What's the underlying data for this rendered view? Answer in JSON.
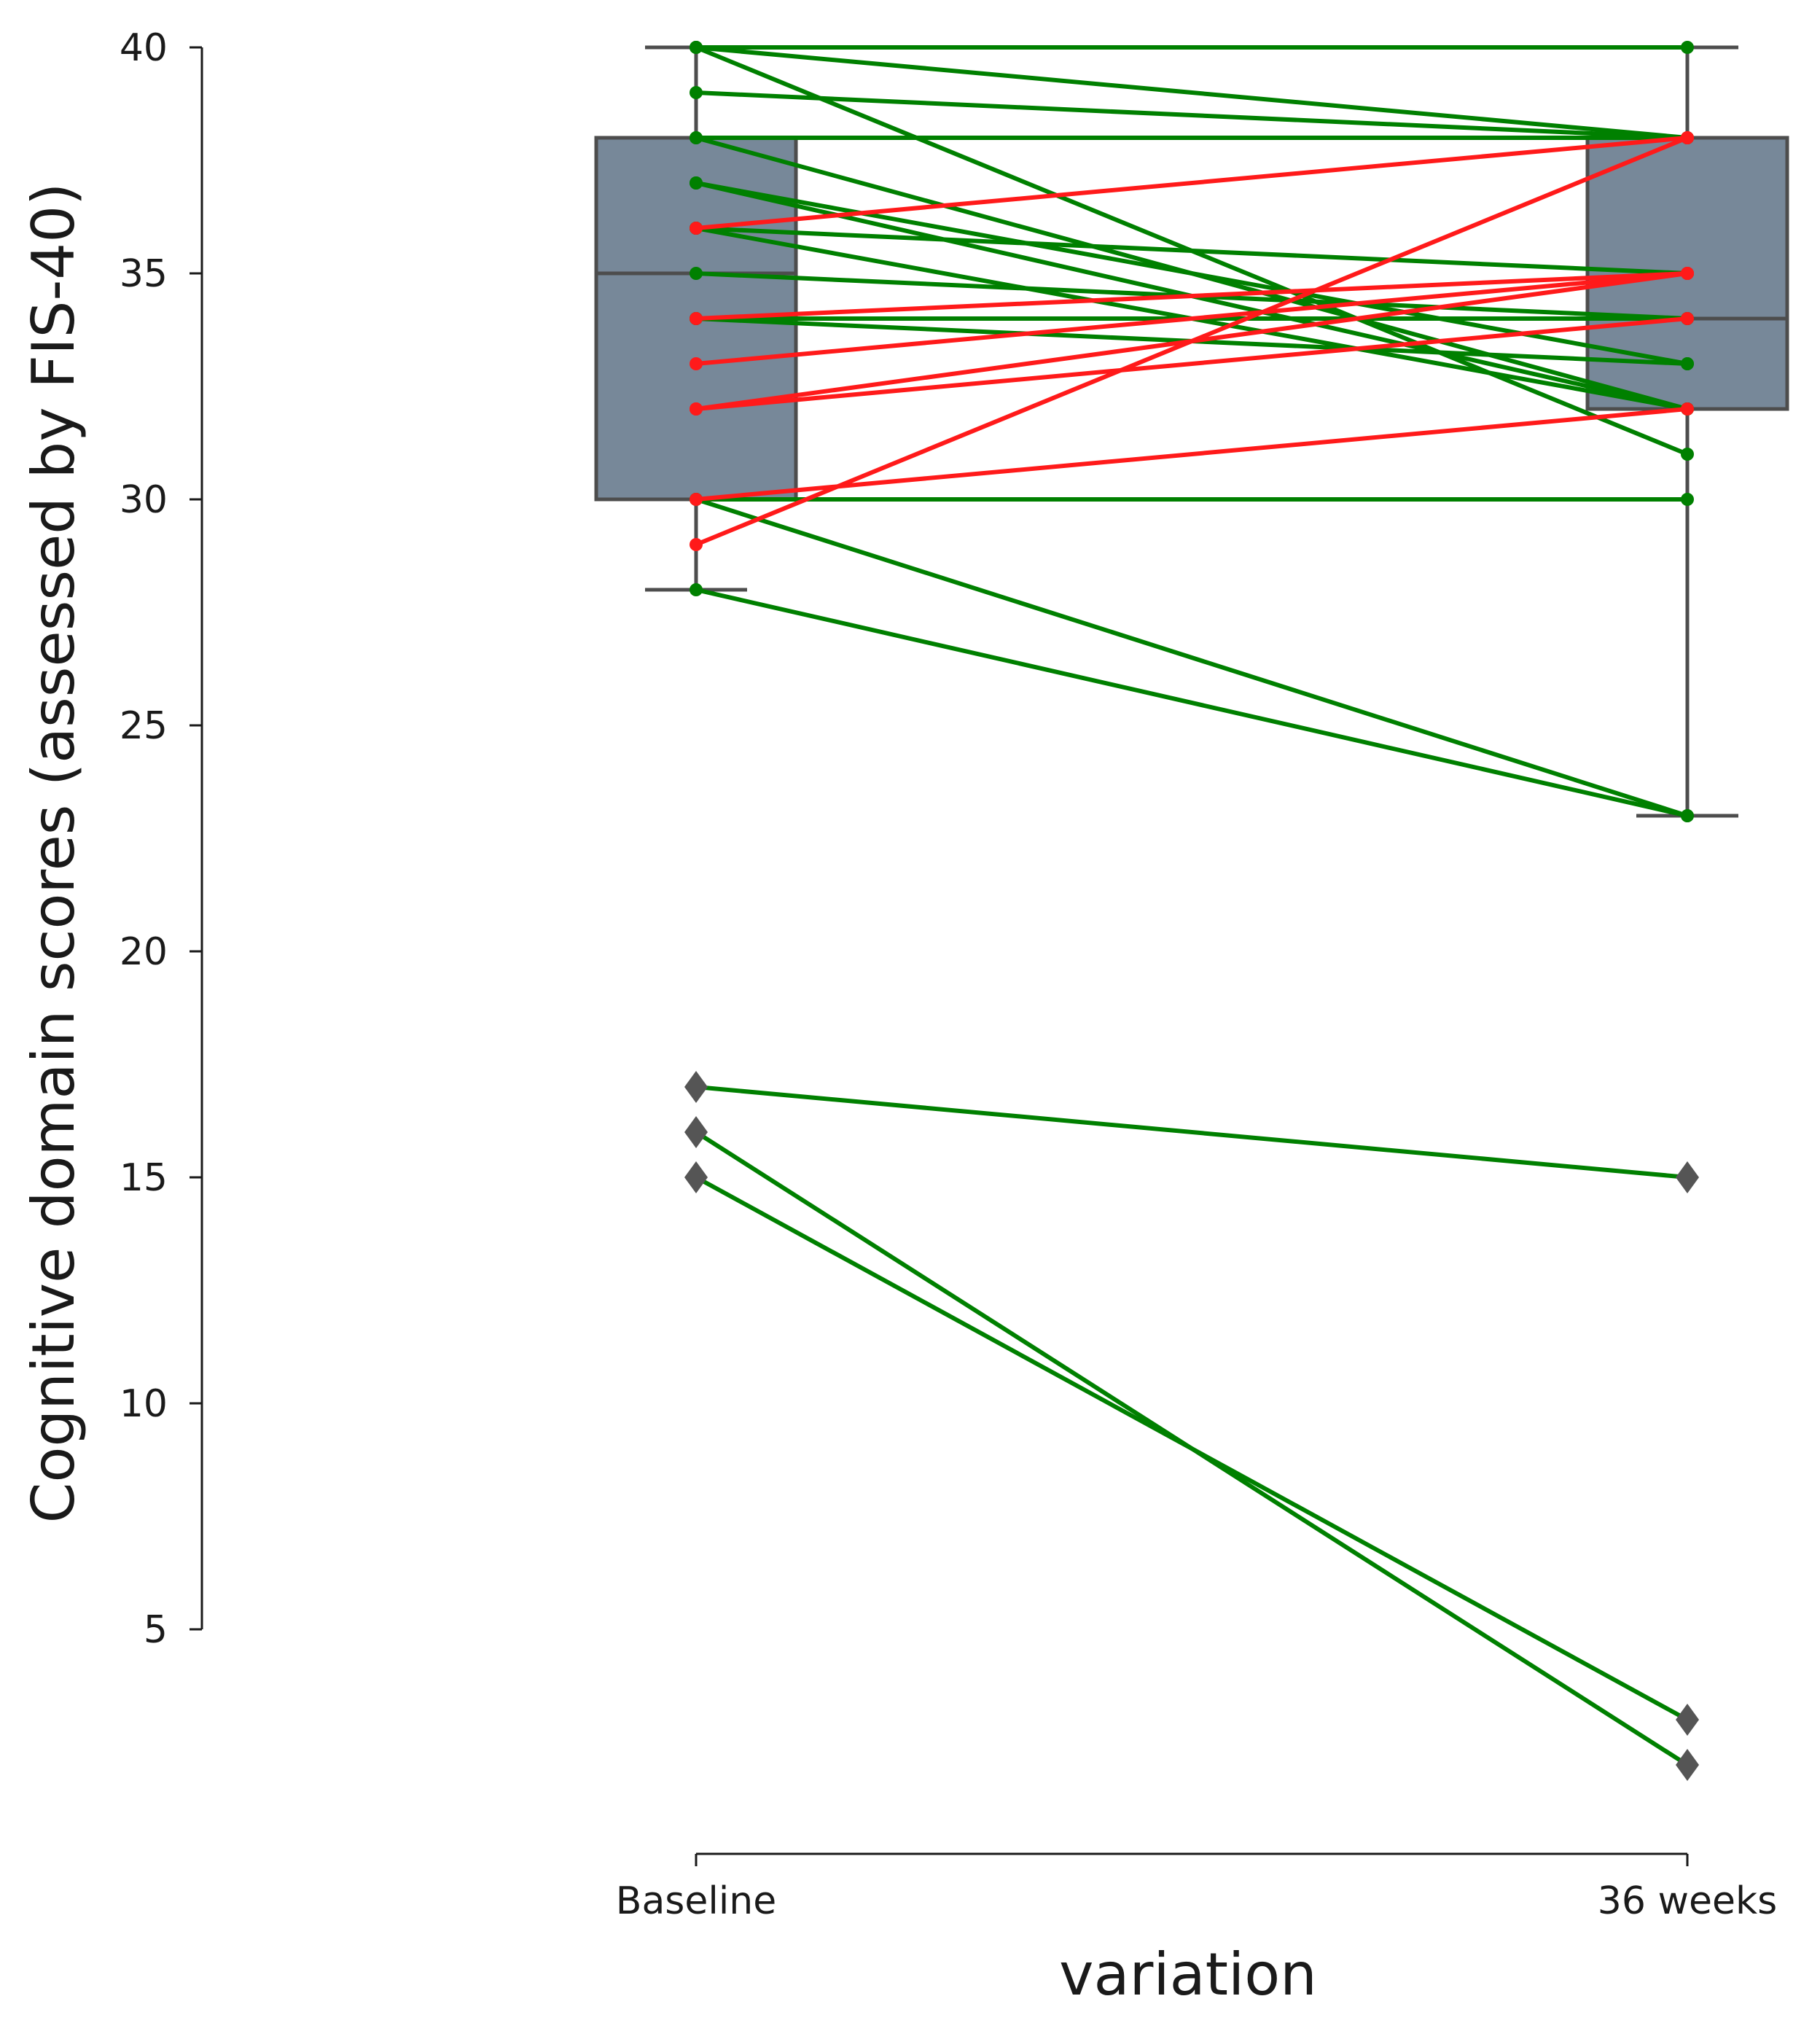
{
  "chart_data": {
    "type": "box-paired-slope",
    "xlabel": "variation",
    "ylabel": "Cognitive domain scores (assessed by FIS-40)",
    "categories": [
      "Baseline",
      "36 weeks"
    ],
    "y_ticks": [
      5,
      10,
      15,
      20,
      25,
      30,
      35,
      40
    ],
    "y_tick_labels": [
      "5",
      "10",
      "15",
      "20",
      "25",
      "30",
      "35",
      "40"
    ],
    "ylim": [
      0.5,
      41
    ],
    "boxes": [
      {
        "category": "Baseline",
        "q1": 30,
        "median": 35,
        "q3": 38,
        "whisker_low": 28,
        "whisker_high": 40,
        "outliers": [
          17,
          16,
          15
        ]
      },
      {
        "category": "36 weeks",
        "q1": 32,
        "median": 34,
        "q3": 38,
        "whisker_low": 23,
        "whisker_high": 40,
        "outliers": [
          15,
          3,
          2
        ]
      }
    ],
    "colors": {
      "box_fill": "#778899",
      "box_edge": "#4d4d4d",
      "improved": "#ff1a1a",
      "not_improved": "#008000"
    },
    "series": [
      {
        "baseline": 40,
        "week36": 40,
        "group": "not_improved"
      },
      {
        "baseline": 40,
        "week36": 38,
        "group": "not_improved"
      },
      {
        "baseline": 40,
        "week36": 31,
        "group": "not_improved"
      },
      {
        "baseline": 39,
        "week36": 38,
        "group": "not_improved"
      },
      {
        "baseline": 38,
        "week36": 38,
        "group": "not_improved"
      },
      {
        "baseline": 38,
        "week36": 32,
        "group": "not_improved"
      },
      {
        "baseline": 37,
        "week36": 33,
        "group": "not_improved"
      },
      {
        "baseline": 37,
        "week36": 32,
        "group": "not_improved"
      },
      {
        "baseline": 36,
        "week36": 35,
        "group": "not_improved"
      },
      {
        "baseline": 36,
        "week36": 32,
        "group": "not_improved"
      },
      {
        "baseline": 35,
        "week36": 34,
        "group": "not_improved"
      },
      {
        "baseline": 34,
        "week36": 34,
        "group": "not_improved"
      },
      {
        "baseline": 34,
        "week36": 33,
        "group": "not_improved"
      },
      {
        "baseline": 30,
        "week36": 30,
        "group": "not_improved"
      },
      {
        "baseline": 30,
        "week36": 23,
        "group": "not_improved"
      },
      {
        "baseline": 28,
        "week36": 23,
        "group": "not_improved"
      },
      {
        "baseline": 17,
        "week36": 15,
        "group": "not_improved"
      },
      {
        "baseline": 16,
        "week36": 2,
        "group": "not_improved"
      },
      {
        "baseline": 15,
        "week36": 3,
        "group": "not_improved"
      },
      {
        "baseline": 36,
        "week36": 38,
        "group": "improved"
      },
      {
        "baseline": 34,
        "week36": 35,
        "group": "improved"
      },
      {
        "baseline": 33,
        "week36": 35,
        "group": "improved"
      },
      {
        "baseline": 32,
        "week36": 34,
        "group": "improved"
      },
      {
        "baseline": 32,
        "week36": 35,
        "group": "improved"
      },
      {
        "baseline": 30,
        "week36": 32,
        "group": "improved"
      },
      {
        "baseline": 29,
        "week36": 38,
        "group": "improved"
      }
    ]
  }
}
